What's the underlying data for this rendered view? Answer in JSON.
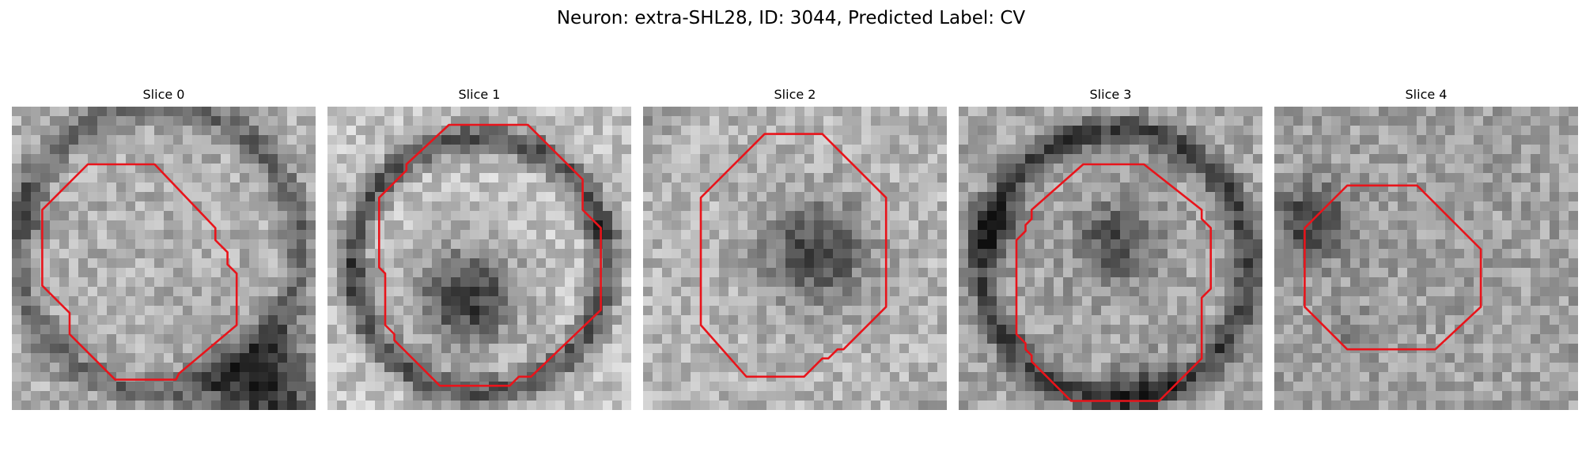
{
  "figure": {
    "title": "Neuron: extra-SHL28, ID: 3044, Predicted Label: CV",
    "outline_color": "#e8141b",
    "panels": [
      {
        "title": "Slice 0",
        "seed": 11,
        "base": 175,
        "center": [
          0.48,
          0.47
        ],
        "ring_r": 0.47,
        "ring_val": -70,
        "core_r": 0.0,
        "core_val": 0,
        "dark_blob": [
          0.83,
          0.93,
          0.18,
          -130
        ],
        "dark_blob2": [
          0.05,
          0.35,
          0.08,
          -60
        ],
        "polygon": [
          [
            0.25,
            0.19
          ],
          [
            0.47,
            0.19
          ],
          [
            0.67,
            0.4
          ],
          [
            0.67,
            0.44
          ],
          [
            0.71,
            0.48
          ],
          [
            0.71,
            0.52
          ],
          [
            0.74,
            0.55
          ],
          [
            0.74,
            0.72
          ],
          [
            0.55,
            0.88
          ],
          [
            0.54,
            0.9
          ],
          [
            0.34,
            0.9
          ],
          [
            0.19,
            0.75
          ],
          [
            0.19,
            0.68
          ],
          [
            0.1,
            0.59
          ],
          [
            0.1,
            0.34
          ]
        ]
      },
      {
        "title": "Slice 1",
        "seed": 23,
        "base": 195,
        "center": [
          0.5,
          0.52
        ],
        "ring_r": 0.42,
        "ring_val": -110,
        "core_r": 0.16,
        "core_val": -140,
        "core_center": [
          0.46,
          0.63
        ],
        "dark_blob": [
          0.1,
          0.55,
          0.05,
          -40
        ],
        "dark_blob2": [
          0.9,
          0.4,
          0.05,
          -40
        ],
        "polygon": [
          [
            0.4,
            0.06
          ],
          [
            0.66,
            0.06
          ],
          [
            0.84,
            0.24
          ],
          [
            0.84,
            0.34
          ],
          [
            0.9,
            0.4
          ],
          [
            0.9,
            0.67
          ],
          [
            0.67,
            0.89
          ],
          [
            0.63,
            0.89
          ],
          [
            0.6,
            0.92
          ],
          [
            0.37,
            0.92
          ],
          [
            0.22,
            0.77
          ],
          [
            0.22,
            0.75
          ],
          [
            0.19,
            0.72
          ],
          [
            0.19,
            0.55
          ],
          [
            0.17,
            0.53
          ],
          [
            0.17,
            0.3
          ],
          [
            0.26,
            0.21
          ],
          [
            0.26,
            0.19
          ]
        ]
      },
      {
        "title": "Slice 2",
        "seed": 37,
        "base": 180,
        "center": [
          0.5,
          0.5
        ],
        "ring_r": 0.0,
        "ring_val": 0,
        "core_r": 0.17,
        "core_val": -110,
        "core_center": [
          0.57,
          0.48
        ],
        "dark_blob": [
          0.05,
          0.05,
          0.06,
          -30
        ],
        "dark_blob2": [
          0.95,
          0.95,
          0.05,
          -30
        ],
        "polygon": [
          [
            0.4,
            0.09
          ],
          [
            0.59,
            0.09
          ],
          [
            0.8,
            0.3
          ],
          [
            0.8,
            0.66
          ],
          [
            0.66,
            0.8
          ],
          [
            0.64,
            0.8
          ],
          [
            0.61,
            0.83
          ],
          [
            0.59,
            0.83
          ],
          [
            0.53,
            0.89
          ],
          [
            0.34,
            0.89
          ],
          [
            0.19,
            0.72
          ],
          [
            0.19,
            0.3
          ]
        ]
      },
      {
        "title": "Slice 3",
        "seed": 41,
        "base": 165,
        "center": [
          0.52,
          0.52
        ],
        "ring_r": 0.44,
        "ring_val": -100,
        "core_r": 0.13,
        "core_val": -90,
        "core_center": [
          0.52,
          0.45
        ],
        "dark_blob": [
          0.12,
          0.4,
          0.09,
          -70
        ],
        "dark_blob2": [
          0.6,
          0.92,
          0.09,
          -60
        ],
        "polygon": [
          [
            0.41,
            0.19
          ],
          [
            0.61,
            0.19
          ],
          [
            0.8,
            0.34
          ],
          [
            0.8,
            0.37
          ],
          [
            0.83,
            0.4
          ],
          [
            0.83,
            0.6
          ],
          [
            0.8,
            0.63
          ],
          [
            0.8,
            0.83
          ],
          [
            0.66,
            0.97
          ],
          [
            0.37,
            0.97
          ],
          [
            0.24,
            0.84
          ],
          [
            0.24,
            0.82
          ],
          [
            0.22,
            0.8
          ],
          [
            0.22,
            0.78
          ],
          [
            0.19,
            0.75
          ],
          [
            0.19,
            0.44
          ],
          [
            0.22,
            0.41
          ],
          [
            0.22,
            0.39
          ],
          [
            0.24,
            0.37
          ],
          [
            0.24,
            0.34
          ]
        ]
      },
      {
        "title": "Slice 4",
        "seed": 53,
        "base": 160,
        "center": [
          0.5,
          0.5
        ],
        "ring_r": 0.0,
        "ring_val": 0,
        "core_r": 0.0,
        "core_val": 0,
        "dark_blob": [
          0.12,
          0.38,
          0.12,
          -100
        ],
        "dark_blob2": [
          0.25,
          0.75,
          0.07,
          -30
        ],
        "polygon": [
          [
            0.24,
            0.26
          ],
          [
            0.47,
            0.26
          ],
          [
            0.68,
            0.47
          ],
          [
            0.68,
            0.66
          ],
          [
            0.53,
            0.8
          ],
          [
            0.24,
            0.8
          ],
          [
            0.1,
            0.66
          ],
          [
            0.1,
            0.4
          ]
        ]
      }
    ]
  }
}
